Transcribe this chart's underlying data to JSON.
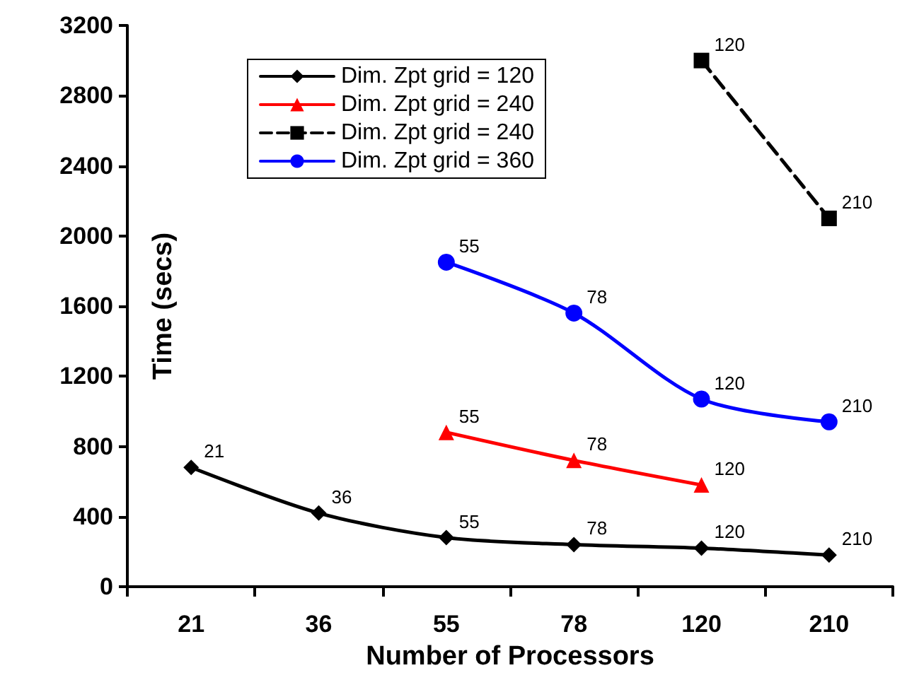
{
  "chart_data": {
    "type": "line",
    "xlabel": "Number of Processors",
    "ylabel": "Time (secs)",
    "categories": [
      "21",
      "36",
      "55",
      "78",
      "120",
      "210"
    ],
    "ylim": [
      0,
      3200
    ],
    "yticks": [
      0,
      400,
      800,
      1200,
      1600,
      2000,
      2400,
      2800,
      3200
    ],
    "grid": false,
    "legend": "top",
    "series": [
      {
        "name": "Dim. Zpt grid = 120",
        "color": "#000000",
        "marker": "diamond",
        "line_style": "solid",
        "values": [
          680,
          420,
          280,
          240,
          220,
          180
        ]
      },
      {
        "name": "Dim. Zpt grid = 240",
        "color": "#ff0000",
        "marker": "triangle",
        "line_style": "solid",
        "values": [
          null,
          null,
          880,
          720,
          580,
          null
        ]
      },
      {
        "name": "Dim. Zpt grid = 240",
        "color": "#000000",
        "marker": "square",
        "line_style": "dashed",
        "values": [
          null,
          null,
          null,
          null,
          3000,
          2100
        ]
      },
      {
        "name": "Dim. Zpt grid = 360",
        "color": "#0000ff",
        "marker": "circle",
        "line_style": "solid",
        "values": [
          null,
          null,
          1850,
          1560,
          1070,
          940
        ]
      }
    ],
    "annotations": [
      {
        "text": "21",
        "x": "21",
        "y": 680
      },
      {
        "text": "36",
        "x": "36",
        "y": 420
      },
      {
        "text": "55",
        "x": "55",
        "y": 280
      },
      {
        "text": "78",
        "x": "78",
        "y": 240
      },
      {
        "text": "120",
        "x": "120",
        "y": 220
      },
      {
        "text": "210",
        "x": "210",
        "y": 180
      },
      {
        "text": "55",
        "x": "55",
        "y": 880
      },
      {
        "text": "78",
        "x": "78",
        "y": 720
      },
      {
        "text": "120",
        "x": "120",
        "y": 580
      },
      {
        "text": "120",
        "x": "120",
        "y": 3000
      },
      {
        "text": "210",
        "x": "210",
        "y": 2100
      },
      {
        "text": "55",
        "x": "55",
        "y": 1850
      },
      {
        "text": "78",
        "x": "78",
        "y": 1560
      },
      {
        "text": "120",
        "x": "120",
        "y": 1070
      },
      {
        "text": "210",
        "x": "210",
        "y": 940
      }
    ]
  }
}
